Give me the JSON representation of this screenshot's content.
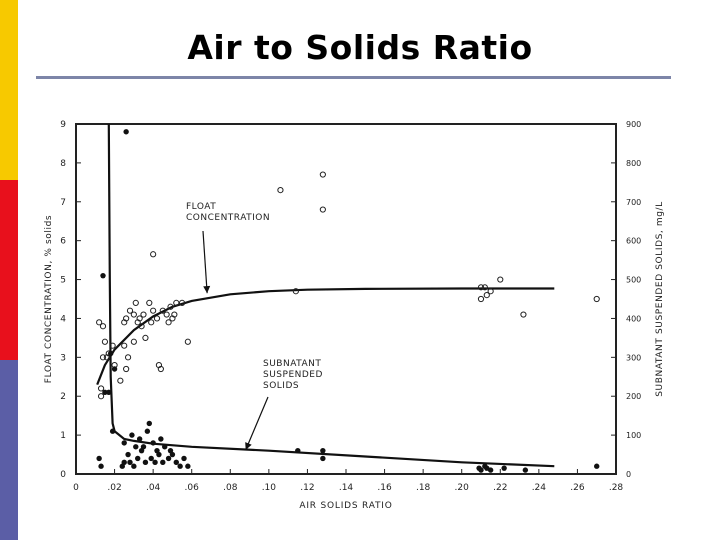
{
  "slide": {
    "title": "Air to Solids Ratio",
    "accent_colors": [
      "#f7c900",
      "#e8101c",
      "#5b5ea6"
    ],
    "rule_color": "#7d85a8"
  },
  "chart_data": {
    "type": "scatter",
    "xlabel": "AIR SOLIDS RATIO",
    "ylabel_left": "FLOAT CONCENTRATION, % solids",
    "ylabel_right": "SUBNATANT SUSPENDED SOLIDS, mg/L",
    "xlim": [
      0,
      0.28
    ],
    "ylim_left": [
      0,
      9
    ],
    "ylim_right": [
      0,
      900
    ],
    "x_ticks": [
      "0",
      ".02",
      ".04",
      ".06",
      ".08",
      ".10",
      ".12",
      ".14",
      ".16",
      ".18",
      ".20",
      ".22",
      ".24",
      ".26",
      ".28"
    ],
    "y_ticks_left": [
      "0",
      "1",
      "2",
      "3",
      "4",
      "5",
      "6",
      "7",
      "8",
      "9"
    ],
    "y_ticks_right": [
      "0",
      "100",
      "200",
      "300",
      "400",
      "500",
      "600",
      "700",
      "800",
      "900"
    ],
    "grid": false,
    "annotations": [
      {
        "text": "FLOAT\nCONCENTRATION",
        "target_x": 0.068,
        "target_y": 4.65
      },
      {
        "text": "SUBNATANT\nSUSPENDED\nSOLIDS",
        "target_x": 0.088,
        "target_y": 0.62
      }
    ],
    "series": [
      {
        "name": "FLOAT CONCENTRATION",
        "marker": "open-circle",
        "points": [
          [
            0.012,
            3.9
          ],
          [
            0.013,
            2.0
          ],
          [
            0.013,
            2.2
          ],
          [
            0.014,
            3.0
          ],
          [
            0.014,
            3.8
          ],
          [
            0.015,
            3.4
          ],
          [
            0.016,
            3.0
          ],
          [
            0.017,
            3.1
          ],
          [
            0.019,
            3.3
          ],
          [
            0.02,
            2.8
          ],
          [
            0.023,
            2.4
          ],
          [
            0.025,
            3.3
          ],
          [
            0.025,
            3.9
          ],
          [
            0.026,
            4.0
          ],
          [
            0.026,
            2.7
          ],
          [
            0.027,
            3.0
          ],
          [
            0.028,
            4.2
          ],
          [
            0.03,
            3.4
          ],
          [
            0.03,
            4.1
          ],
          [
            0.031,
            4.4
          ],
          [
            0.032,
            3.9
          ],
          [
            0.033,
            4.0
          ],
          [
            0.034,
            3.8
          ],
          [
            0.035,
            4.1
          ],
          [
            0.036,
            3.5
          ],
          [
            0.038,
            4.4
          ],
          [
            0.039,
            3.9
          ],
          [
            0.04,
            4.2
          ],
          [
            0.04,
            5.65
          ],
          [
            0.042,
            4.0
          ],
          [
            0.043,
            2.8
          ],
          [
            0.044,
            2.7
          ],
          [
            0.045,
            4.2
          ],
          [
            0.047,
            4.1
          ],
          [
            0.048,
            3.9
          ],
          [
            0.049,
            4.3
          ],
          [
            0.05,
            4.0
          ],
          [
            0.051,
            4.1
          ],
          [
            0.052,
            4.4
          ],
          [
            0.055,
            4.4
          ],
          [
            0.058,
            3.4
          ],
          [
            0.106,
            7.3
          ],
          [
            0.114,
            4.7
          ],
          [
            0.128,
            7.7
          ],
          [
            0.128,
            6.8
          ],
          [
            0.21,
            4.8
          ],
          [
            0.21,
            4.5
          ],
          [
            0.212,
            4.8
          ],
          [
            0.213,
            4.6
          ],
          [
            0.215,
            4.7
          ],
          [
            0.22,
            5.0
          ],
          [
            0.232,
            4.1
          ],
          [
            0.27,
            4.5
          ]
        ],
        "fit_curve": [
          [
            0.011,
            2.3
          ],
          [
            0.015,
            2.8
          ],
          [
            0.02,
            3.2
          ],
          [
            0.03,
            3.7
          ],
          [
            0.04,
            4.05
          ],
          [
            0.05,
            4.3
          ],
          [
            0.06,
            4.45
          ],
          [
            0.08,
            4.62
          ],
          [
            0.1,
            4.7
          ],
          [
            0.12,
            4.74
          ],
          [
            0.15,
            4.76
          ],
          [
            0.2,
            4.77
          ],
          [
            0.248,
            4.77
          ]
        ]
      },
      {
        "name": "SUBNATANT SUSPENDED SOLIDS",
        "marker": "filled-circle",
        "points": [
          [
            0.012,
            40
          ],
          [
            0.013,
            20
          ],
          [
            0.014,
            510
          ],
          [
            0.015,
            210
          ],
          [
            0.017,
            210
          ],
          [
            0.018,
            310
          ],
          [
            0.019,
            110
          ],
          [
            0.02,
            270
          ],
          [
            0.024,
            20
          ],
          [
            0.025,
            30
          ],
          [
            0.025,
            80
          ],
          [
            0.026,
            880
          ],
          [
            0.027,
            50
          ],
          [
            0.028,
            30
          ],
          [
            0.029,
            100
          ],
          [
            0.03,
            20
          ],
          [
            0.031,
            70
          ],
          [
            0.032,
            40
          ],
          [
            0.033,
            90
          ],
          [
            0.034,
            60
          ],
          [
            0.035,
            70
          ],
          [
            0.036,
            30
          ],
          [
            0.037,
            110
          ],
          [
            0.038,
            130
          ],
          [
            0.039,
            40
          ],
          [
            0.04,
            80
          ],
          [
            0.041,
            30
          ],
          [
            0.042,
            60
          ],
          [
            0.043,
            50
          ],
          [
            0.044,
            90
          ],
          [
            0.045,
            30
          ],
          [
            0.046,
            70
          ],
          [
            0.048,
            40
          ],
          [
            0.049,
            60
          ],
          [
            0.05,
            50
          ],
          [
            0.052,
            30
          ],
          [
            0.054,
            20
          ],
          [
            0.056,
            40
          ],
          [
            0.058,
            20
          ],
          [
            0.115,
            60
          ],
          [
            0.128,
            60
          ],
          [
            0.128,
            40
          ],
          [
            0.209,
            15
          ],
          [
            0.21,
            10
          ],
          [
            0.212,
            20
          ],
          [
            0.213,
            15
          ],
          [
            0.215,
            10
          ],
          [
            0.222,
            15
          ],
          [
            0.233,
            10
          ],
          [
            0.27,
            20
          ]
        ],
        "fit_curve": [
          [
            0.017,
            900
          ],
          [
            0.0175,
            500
          ],
          [
            0.018,
            250
          ],
          [
            0.019,
            130
          ],
          [
            0.02,
            110
          ],
          [
            0.025,
            90
          ],
          [
            0.03,
            85
          ],
          [
            0.04,
            78
          ],
          [
            0.06,
            70
          ],
          [
            0.1,
            60
          ],
          [
            0.15,
            45
          ],
          [
            0.2,
            30
          ],
          [
            0.248,
            20
          ]
        ]
      }
    ]
  }
}
